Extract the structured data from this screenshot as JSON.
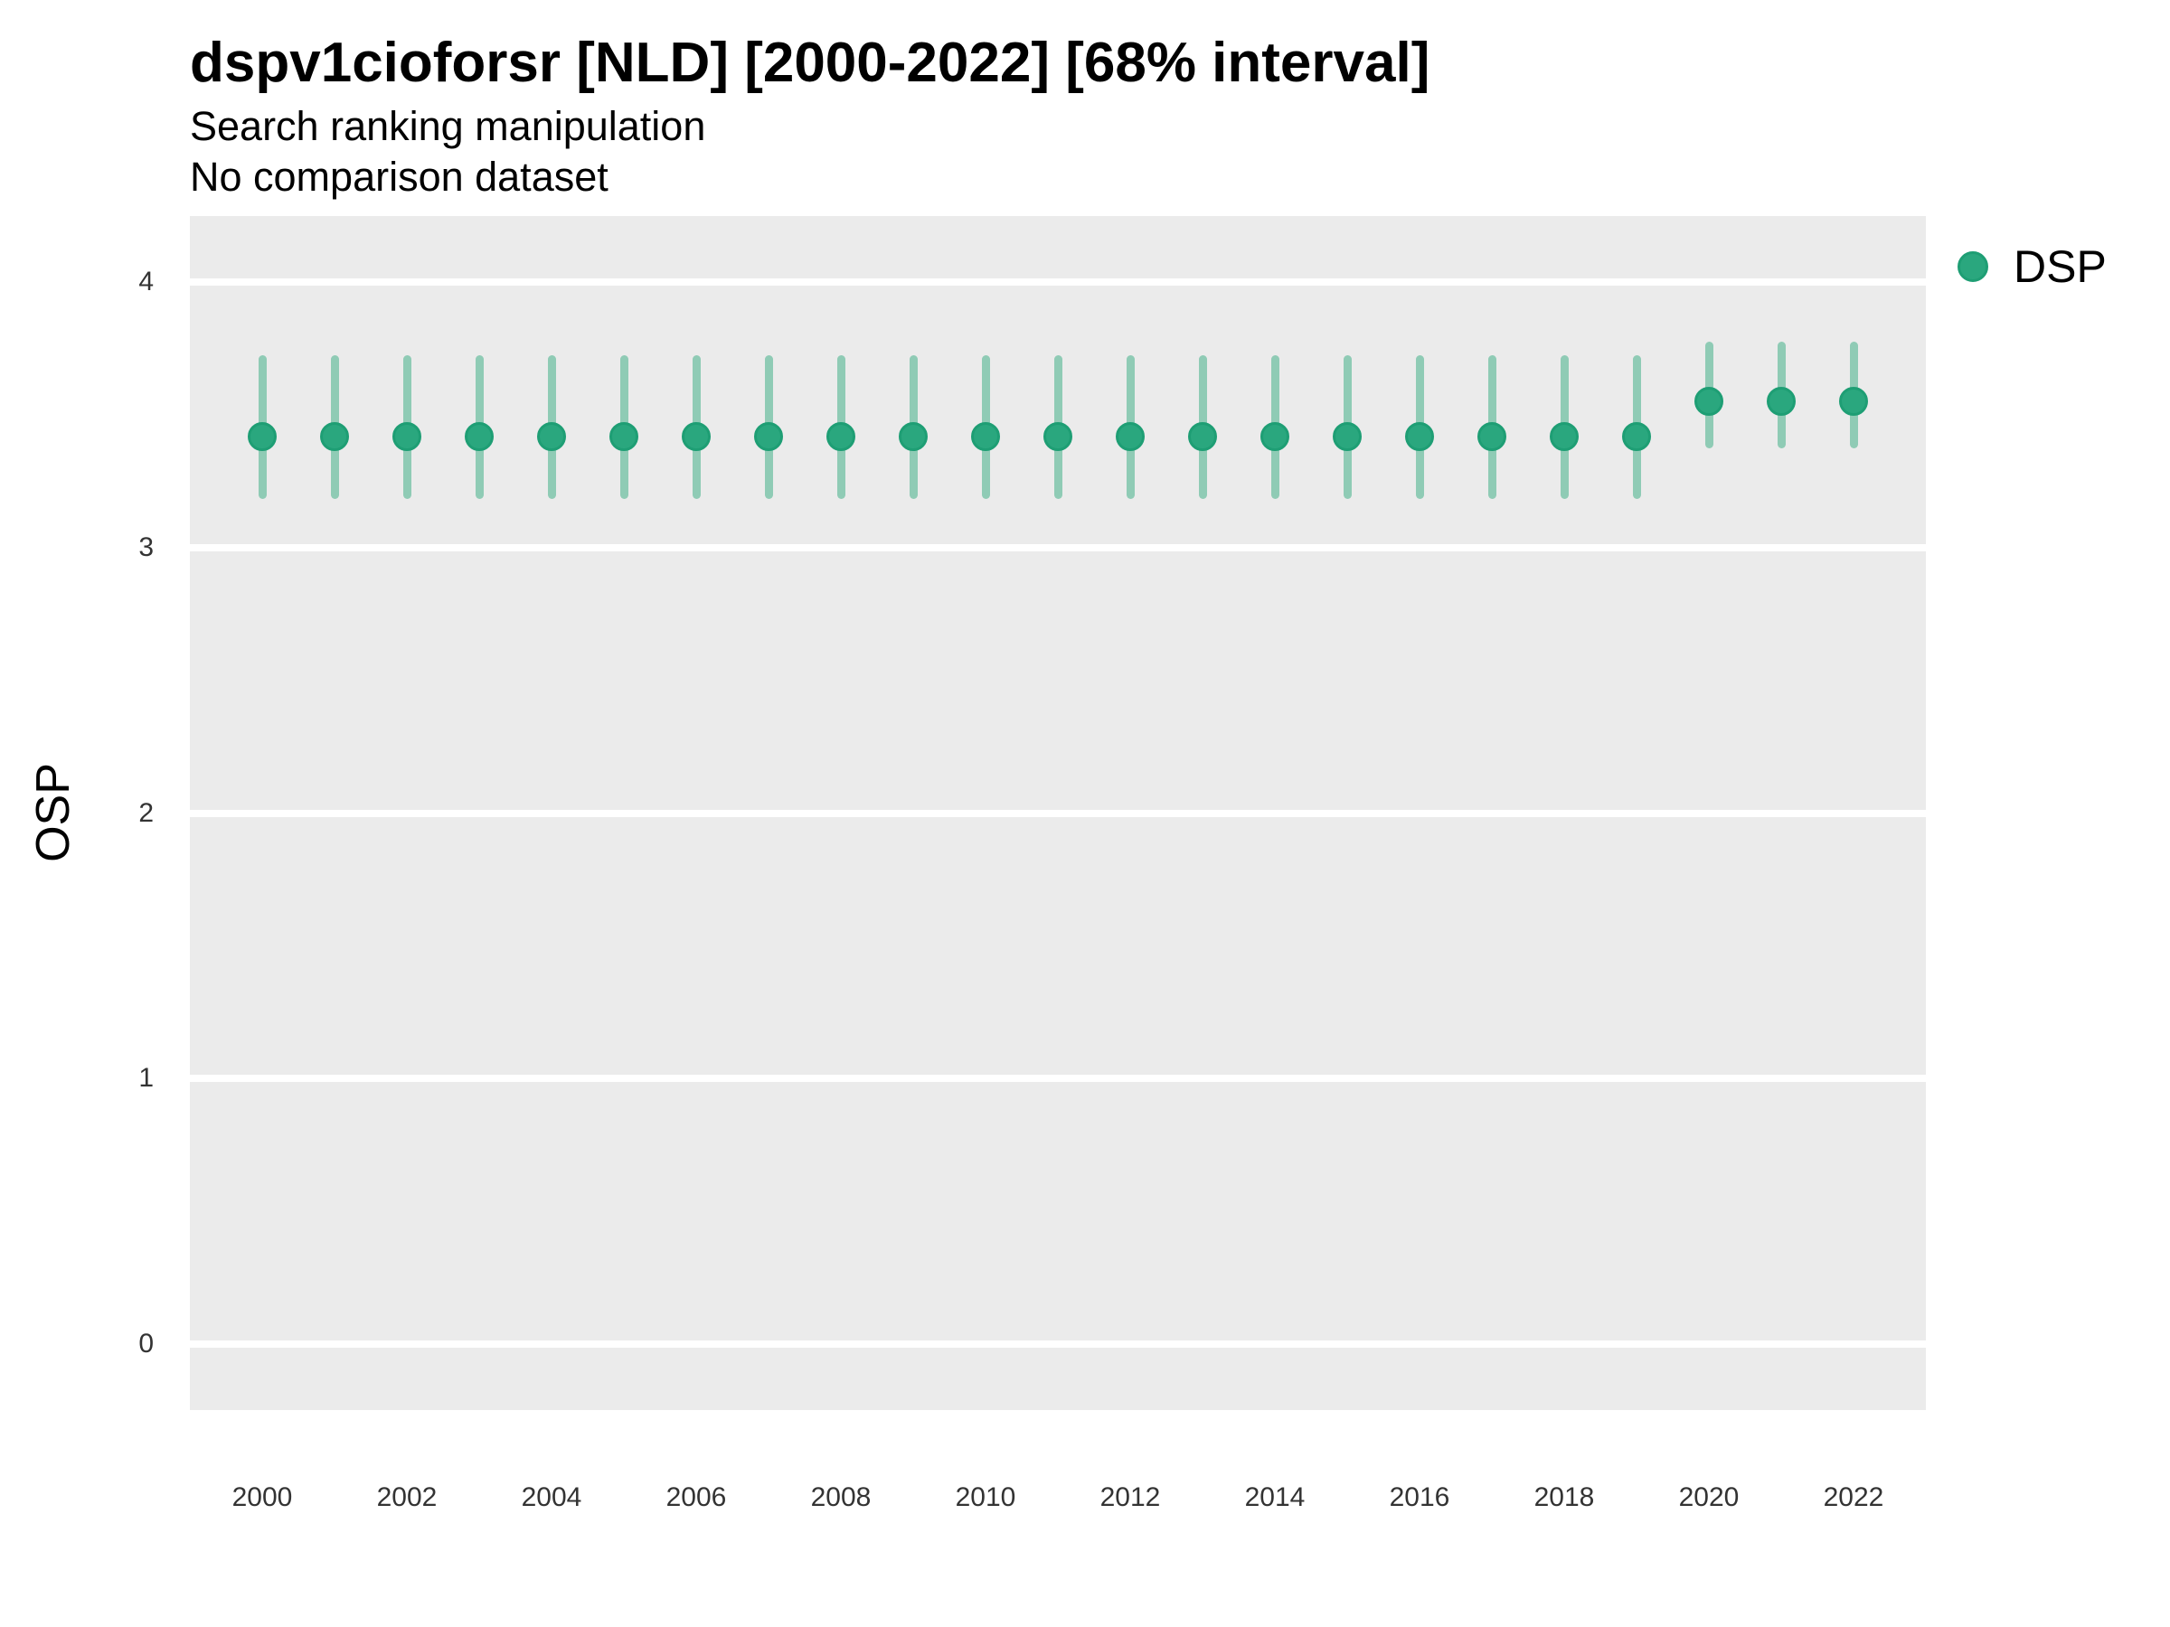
{
  "title": "dspv1cioforsr [NLD] [2000-2022] [68% interval]",
  "subtitle1": "Search ranking manipulation",
  "subtitle2": "No comparison dataset",
  "ylabel": "OSP",
  "legend": {
    "label": "DSP",
    "position": "right"
  },
  "colors": {
    "panel_bg": "#EBEBEB",
    "gridline": "#FFFFFF",
    "point_fill": "#2AA77E",
    "point_stroke": "#1E9E74",
    "errorbar": "#8FCBB5",
    "title_text": "#000000",
    "tick_text": "#333333"
  },
  "chart_data": {
    "type": "scatter",
    "title": "dspv1cioforsr [NLD] [2000-2022] [68% interval]",
    "subtitle": "Search ranking manipulation",
    "caption": "No comparison dataset",
    "xlabel": "",
    "ylabel": "OSP",
    "grid": "horizontal-major-only",
    "legend_position": "right",
    "interval_level": "68%",
    "x": [
      2000,
      2001,
      2002,
      2003,
      2004,
      2005,
      2006,
      2007,
      2008,
      2009,
      2010,
      2011,
      2012,
      2013,
      2014,
      2015,
      2016,
      2017,
      2018,
      2019,
      2020,
      2021,
      2022
    ],
    "series": [
      {
        "name": "DSP",
        "values": [
          3.42,
          3.42,
          3.42,
          3.42,
          3.42,
          3.42,
          3.42,
          3.42,
          3.42,
          3.42,
          3.42,
          3.42,
          3.42,
          3.42,
          3.42,
          3.42,
          3.42,
          3.42,
          3.42,
          3.42,
          3.55,
          3.55,
          3.55
        ],
        "lower": [
          3.2,
          3.2,
          3.2,
          3.2,
          3.2,
          3.2,
          3.2,
          3.2,
          3.2,
          3.2,
          3.2,
          3.2,
          3.2,
          3.2,
          3.2,
          3.2,
          3.2,
          3.2,
          3.2,
          3.2,
          3.39,
          3.39,
          3.39
        ],
        "upper": [
          3.71,
          3.71,
          3.71,
          3.71,
          3.71,
          3.71,
          3.71,
          3.71,
          3.71,
          3.71,
          3.71,
          3.71,
          3.71,
          3.71,
          3.71,
          3.71,
          3.71,
          3.71,
          3.71,
          3.71,
          3.76,
          3.76,
          3.76
        ]
      }
    ],
    "xticks": [
      2000,
      2002,
      2004,
      2006,
      2008,
      2010,
      2012,
      2014,
      2016,
      2018,
      2020,
      2022
    ],
    "yticks": [
      0,
      1,
      2,
      3,
      4
    ],
    "ylim": [
      -0.25,
      4.25
    ],
    "xlim": [
      1999,
      2023
    ]
  }
}
